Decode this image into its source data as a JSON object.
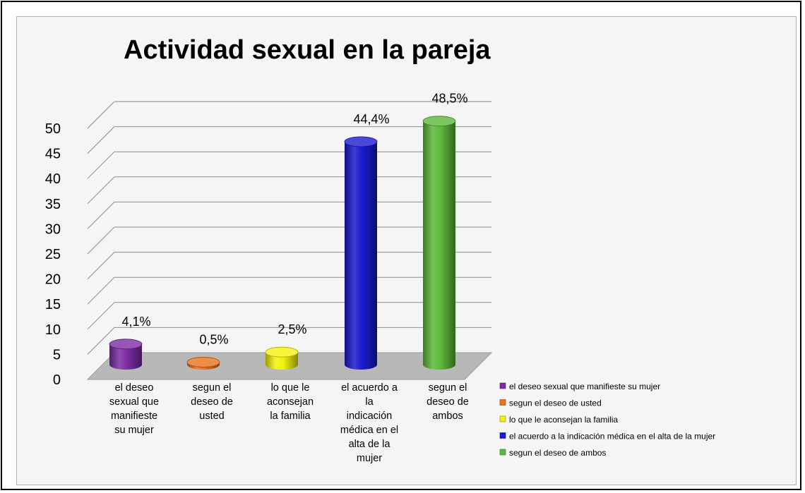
{
  "chart_data": {
    "type": "bar",
    "title": "Actividad sexual en la pareja",
    "categories": [
      "el deseo sexual que manifieste su mujer",
      "segun el deseo de usted",
      "lo que le aconsejan la familia",
      "el acuerdo a la indicación médica en el alta de la mujer",
      "segun el deseo de ambos"
    ],
    "category_labels": [
      [
        "el deseo",
        "sexual que",
        "manifieste",
        "su mujer"
      ],
      [
        "segun el",
        "deseo de",
        "usted"
      ],
      [
        "lo que le",
        "aconsejan",
        "la familia"
      ],
      [
        "el acuerdo a",
        "la",
        "indicación",
        "médica en el",
        "alta de la",
        "mujer"
      ],
      [
        "segun el",
        "deseo de",
        "ambos"
      ]
    ],
    "values": [
      4.1,
      0.5,
      2.5,
      44.4,
      48.5
    ],
    "data_labels": [
      "4,1%",
      "0,5%",
      "2,5%",
      "44,4%",
      "48,5%"
    ],
    "colors": [
      "#7a2ca3",
      "#e8711b",
      "#f2f20c",
      "#1a1acf",
      "#5cb83a"
    ],
    "legend": [
      "el deseo sexual que manifieste su mujer",
      "segun el deseo de usted",
      "lo que le aconsejan la familia",
      "el acuerdo a la indicación médica en el alta de la mujer",
      "segun el deseo de ambos"
    ],
    "legend_position": "right",
    "ylim": [
      0,
      50
    ],
    "yticks": [
      0,
      5,
      10,
      15,
      20,
      25,
      30,
      35,
      40,
      45,
      50
    ],
    "grid": true,
    "style": "3d-cylinder"
  }
}
